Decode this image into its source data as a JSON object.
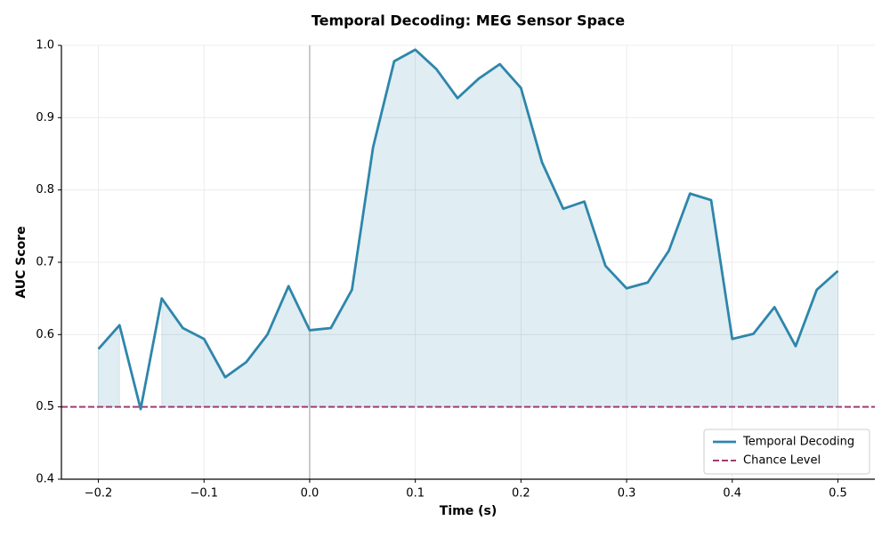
{
  "chart_data": {
    "type": "line",
    "title": "Temporal Decoding: MEG Sensor Space",
    "xlabel": "Time (s)",
    "ylabel": "AUC Score",
    "x": [
      -0.2,
      -0.18,
      -0.16,
      -0.14,
      -0.12,
      -0.1,
      -0.08,
      -0.06,
      -0.04,
      -0.02,
      0.0,
      0.02,
      0.04,
      0.06,
      0.08,
      0.1,
      0.12,
      0.14,
      0.16,
      0.18,
      0.2,
      0.22,
      0.24,
      0.26,
      0.28,
      0.3,
      0.32,
      0.34,
      0.36,
      0.38,
      0.4,
      0.42,
      0.44,
      0.46,
      0.48,
      0.5
    ],
    "series": [
      {
        "name": "Temporal Decoding",
        "color": "#2e86ab",
        "values": [
          0.58,
          0.613,
          0.497,
          0.65,
          0.609,
          0.594,
          0.541,
          0.562,
          0.6,
          0.667,
          0.606,
          0.609,
          0.662,
          0.859,
          0.978,
          0.994,
          0.967,
          0.927,
          0.954,
          0.974,
          0.941,
          0.838,
          0.774,
          0.784,
          0.695,
          0.664,
          0.672,
          0.716,
          0.795,
          0.786,
          0.594,
          0.601,
          0.638,
          0.584,
          0.662,
          0.688
        ]
      }
    ],
    "chance": {
      "name": "Chance Level",
      "value": 0.5,
      "color": "#a23b72"
    },
    "vline": 0,
    "xlim": [
      -0.235,
      0.535
    ],
    "ylim": [
      0.4,
      1.0
    ],
    "xticks": [
      {
        "value": -0.2,
        "label": "−0.2"
      },
      {
        "value": -0.1,
        "label": "−0.1"
      },
      {
        "value": 0,
        "label": "0.0"
      },
      0.1,
      0.2,
      0.3,
      0.4,
      0.5
    ],
    "yticks": [
      0.4,
      0.5,
      0.6,
      0.7,
      0.8,
      0.9,
      {
        "value": 1.0,
        "label": "1.0"
      }
    ],
    "grid": true,
    "legend": "lower right"
  }
}
